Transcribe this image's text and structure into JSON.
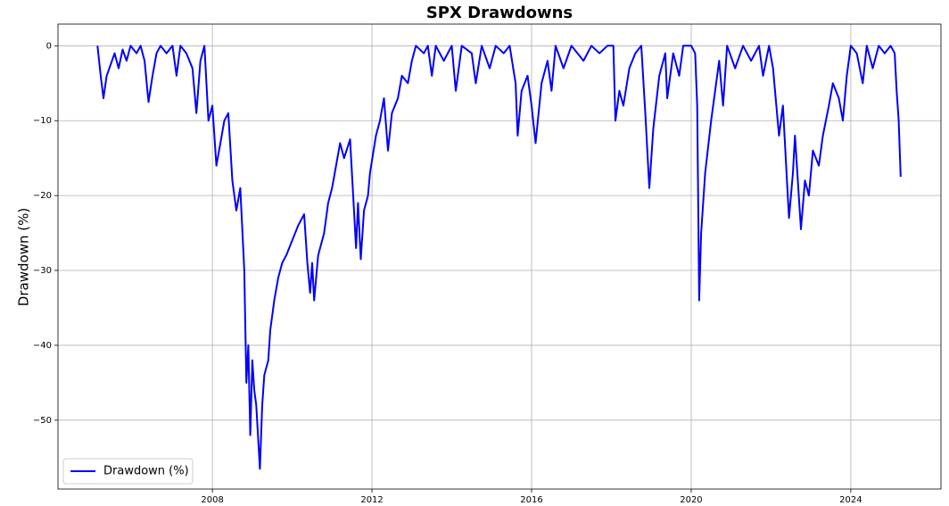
{
  "chart_data": {
    "type": "line",
    "title": "SPX Drawdowns",
    "ylabel": "Drawdown (%)",
    "x": [
      2005.12,
      2005.2,
      2005.27,
      2005.35,
      2005.45,
      2005.55,
      2005.65,
      2005.75,
      2005.85,
      2005.95,
      2006.1,
      2006.2,
      2006.3,
      2006.4,
      2006.5,
      2006.6,
      2006.7,
      2006.85,
      2007.0,
      2007.1,
      2007.2,
      2007.35,
      2007.5,
      2007.6,
      2007.7,
      2007.8,
      2007.9,
      2008.0,
      2008.1,
      2008.2,
      2008.3,
      2008.4,
      2008.5,
      2008.6,
      2008.7,
      2008.8,
      2008.85,
      2008.9,
      2008.95,
      2009.0,
      2009.05,
      2009.1,
      2009.19,
      2009.25,
      2009.3,
      2009.4,
      2009.45,
      2009.55,
      2009.65,
      2009.75,
      2009.85,
      2010.0,
      2010.15,
      2010.3,
      2010.38,
      2010.45,
      2010.5,
      2010.55,
      2010.65,
      2010.8,
      2010.9,
      2011.0,
      2011.1,
      2011.2,
      2011.3,
      2011.45,
      2011.55,
      2011.6,
      2011.65,
      2011.72,
      2011.8,
      2011.9,
      2011.95,
      2012.1,
      2012.2,
      2012.3,
      2012.4,
      2012.5,
      2012.65,
      2012.75,
      2012.9,
      2013.0,
      2013.1,
      2013.3,
      2013.4,
      2013.5,
      2013.6,
      2013.8,
      2014.0,
      2014.1,
      2014.25,
      2014.5,
      2014.6,
      2014.75,
      2014.95,
      2015.1,
      2015.3,
      2015.45,
      2015.6,
      2015.65,
      2015.75,
      2015.9,
      2016.0,
      2016.1,
      2016.25,
      2016.4,
      2016.5,
      2016.6,
      2016.8,
      2017.0,
      2017.3,
      2017.5,
      2017.7,
      2017.9,
      2018.05,
      2018.1,
      2018.2,
      2018.3,
      2018.45,
      2018.6,
      2018.75,
      2018.85,
      2018.95,
      2019.05,
      2019.2,
      2019.35,
      2019.4,
      2019.55,
      2019.7,
      2019.8,
      2020.0,
      2020.1,
      2020.15,
      2020.2,
      2020.25,
      2020.35,
      2020.5,
      2020.6,
      2020.7,
      2020.8,
      2020.9,
      2021.1,
      2021.3,
      2021.5,
      2021.7,
      2021.8,
      2021.95,
      2022.05,
      2022.2,
      2022.3,
      2022.4,
      2022.45,
      2022.55,
      2022.6,
      2022.75,
      2022.85,
      2022.95,
      2023.05,
      2023.2,
      2023.3,
      2023.45,
      2023.55,
      2023.7,
      2023.8,
      2023.9,
      2024.0,
      2024.15,
      2024.3,
      2024.4,
      2024.55,
      2024.7,
      2024.85,
      2025.0,
      2025.1,
      2025.15,
      2025.2,
      2025.25
    ],
    "series": [
      {
        "name": "Drawdown (%)",
        "color": "#0000ff",
        "values": [
          0,
          -4,
          -7,
          -4,
          -2.5,
          -1,
          -3,
          -0.5,
          -2,
          0,
          -1,
          0,
          -2,
          -7.5,
          -4,
          -1,
          0,
          -1,
          0,
          -4,
          0,
          -1,
          -3,
          -9,
          -2,
          0,
          -10,
          -8,
          -16,
          -13,
          -10,
          -9,
          -18,
          -22,
          -19,
          -30,
          -45,
          -40,
          -52,
          -42,
          -46,
          -48,
          -56.5,
          -48,
          -44,
          -42,
          -38,
          -34,
          -31,
          -29,
          -28,
          -26,
          -24,
          -22.5,
          -29,
          -33,
          -29,
          -34,
          -28,
          -25,
          -21,
          -19,
          -16,
          -13,
          -15,
          -12.5,
          -22,
          -27,
          -21,
          -28.5,
          -22,
          -20,
          -17,
          -12,
          -10,
          -7,
          -14,
          -9,
          -7,
          -4,
          -5,
          -2,
          0,
          -1,
          0,
          -4,
          0,
          -2,
          0,
          -6,
          0,
          -1,
          -5,
          0,
          -3,
          0,
          -1,
          0,
          -5,
          -12,
          -6,
          -4,
          -8,
          -13,
          -5,
          -2,
          -6,
          0,
          -3,
          0,
          -2,
          0,
          -1,
          0,
          0,
          -10,
          -6,
          -8,
          -3,
          -1,
          0,
          -9,
          -19,
          -11,
          -4,
          -1,
          -7,
          -1,
          -4,
          0,
          0,
          -1,
          -8,
          -34,
          -25,
          -17,
          -10,
          -6,
          -2,
          -8,
          0,
          -3,
          0,
          -2,
          0,
          -4,
          0,
          -3,
          -12,
          -8,
          -18,
          -23,
          -17,
          -12,
          -24.5,
          -18,
          -20,
          -14,
          -16,
          -12,
          -8,
          -5,
          -7,
          -10,
          -4,
          0,
          -1,
          -5,
          0,
          -3,
          0,
          -1,
          0,
          -1,
          -6,
          -10,
          -17.5
        ]
      }
    ],
    "xlim": [
      2004.13,
      2026.26
    ],
    "xticks": [
      2008,
      2012,
      2016,
      2020,
      2024
    ],
    "ylim": [
      -59.2,
      2.9
    ],
    "yticks": [
      {
        "value": 0,
        "label": "0"
      },
      {
        "value": -10,
        "label": "−10"
      },
      {
        "value": -20,
        "label": "−20"
      },
      {
        "value": -30,
        "label": "−30"
      },
      {
        "value": -40,
        "label": "−40"
      },
      {
        "value": -50,
        "label": "−50"
      }
    ],
    "grid": true,
    "legend": "lower left"
  }
}
